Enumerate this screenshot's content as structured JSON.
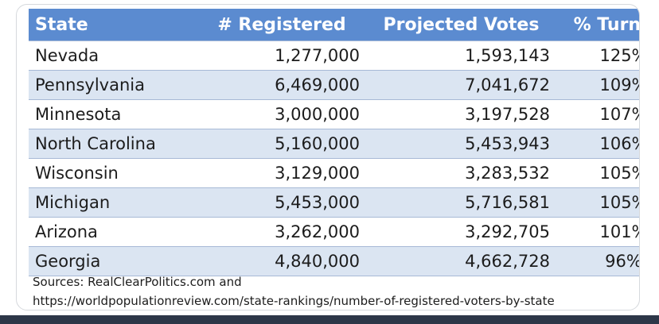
{
  "table": {
    "headers": [
      "State",
      "# Registered",
      "Projected Votes",
      "% Turnout"
    ],
    "rows": [
      [
        "Nevada",
        "1,277,000",
        "1,593,143",
        "125%"
      ],
      [
        "Pennsylvania",
        "6,469,000",
        "7,041,672",
        "109%"
      ],
      [
        "Minnesota",
        "3,000,000",
        "3,197,528",
        "107%"
      ],
      [
        "North Carolina",
        "5,160,000",
        "5,453,943",
        "106%"
      ],
      [
        "Wisconsin",
        "3,129,000",
        "3,283,532",
        "105%"
      ],
      [
        "Michigan",
        "5,453,000",
        "5,716,581",
        "105%"
      ],
      [
        "Arizona",
        "3,262,000",
        "3,292,705",
        "101%"
      ],
      [
        "Georgia",
        "4,840,000",
        "4,662,728",
        "96%"
      ]
    ]
  },
  "sources": {
    "line1": "Sources: RealClearPolitics.com and",
    "line2": "https://worldpopulationreview.com/state-rankings/number-of-registered-voters-by-state"
  },
  "colors": {
    "header_bg": "#5b8bd0",
    "stripe_bg": "#dbe5f2"
  }
}
